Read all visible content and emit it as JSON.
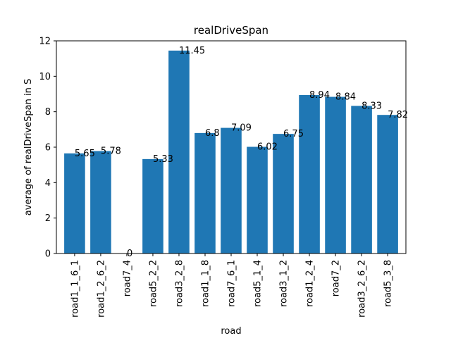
{
  "chart_data": {
    "type": "bar",
    "title": "realDriveSpan",
    "xlabel": "road",
    "ylabel": "average of realDriveSpan in S",
    "categories": [
      "road1_1_6_1",
      "road1_2_6_2",
      "road7_4",
      "road5_2_2",
      "road3_2_8",
      "road1_1_8",
      "road7_6_1",
      "road5_1_4",
      "road3_1_2",
      "road1_2_4",
      "road7_2",
      "road3_2_6_2",
      "road5_3_8"
    ],
    "values": [
      5.65,
      5.78,
      0,
      5.33,
      11.45,
      6.8,
      7.09,
      6.02,
      6.75,
      8.94,
      8.84,
      8.33,
      7.82
    ],
    "data_labels": [
      "5.65",
      "5.78",
      "0",
      "5.33",
      "11.45",
      "6.8",
      "7.09",
      "6.02",
      "6.75",
      "8.94",
      "8.84",
      "8.33",
      "7.82"
    ],
    "ylim": [
      0,
      12
    ],
    "yticks": [
      0,
      2,
      4,
      6,
      8,
      10,
      12
    ],
    "grid": false,
    "bar_color": "#1f77b4"
  }
}
